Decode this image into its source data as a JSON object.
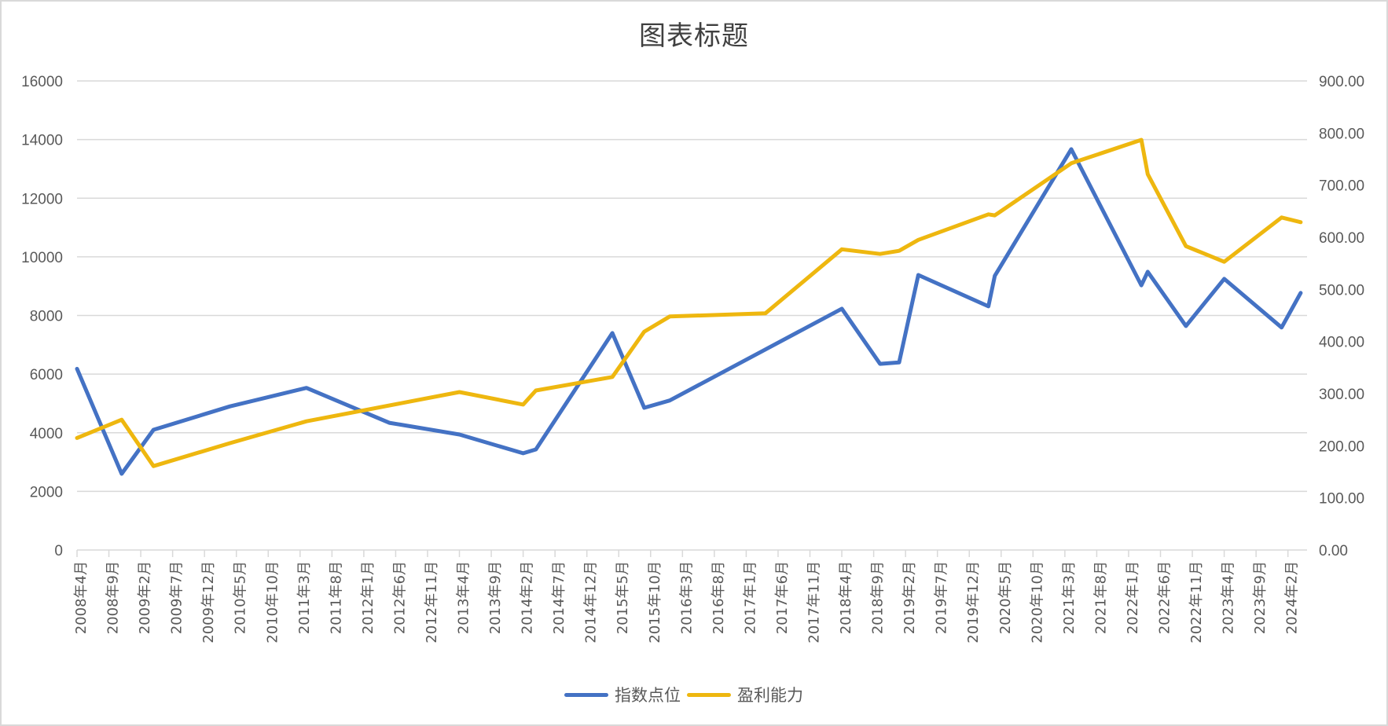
{
  "chart_data": {
    "type": "line",
    "title": "图表标题",
    "xlabel": "",
    "ylabel": "",
    "y2label": "",
    "grid": true,
    "legend_position": "bottom",
    "x_axis": {
      "start": "2008年4月",
      "tick_interval_months": 5,
      "tick_labels": [
        "2008年4月",
        "2008年9月",
        "2009年2月",
        "2009年7月",
        "2009年12月",
        "2010年5月",
        "2010年10月",
        "2011年3月",
        "2011年8月",
        "2012年1月",
        "2012年6月",
        "2012年11月",
        "2013年4月",
        "2013年9月",
        "2014年2月",
        "2014年7月",
        "2014年12月",
        "2015年5月",
        "2015年10月",
        "2016年3月",
        "2016年8月",
        "2017年1月",
        "2017年6月",
        "2017年11月",
        "2018年4月",
        "2018年9月",
        "2019年2月",
        "2019年7月",
        "2019年12月",
        "2020年5月",
        "2020年10月",
        "2021年3月",
        "2021年8月",
        "2022年1月",
        "2022年6月",
        "2022年11月",
        "2023年4月",
        "2023年9月",
        "2024年2月"
      ],
      "range_months": [
        0,
        193
      ]
    },
    "y_left": {
      "min": 0,
      "max": 16000,
      "step": 2000,
      "tick_labels": [
        "0",
        "2000",
        "4000",
        "6000",
        "8000",
        "10000",
        "12000",
        "14000",
        "16000"
      ]
    },
    "y_right": {
      "min": 0,
      "max": 900,
      "step": 100,
      "tick_labels": [
        "0.00",
        "100.00",
        "200.00",
        "300.00",
        "400.00",
        "500.00",
        "600.00",
        "700.00",
        "800.00",
        "900.00"
      ]
    },
    "series": [
      {
        "name": "指数点位",
        "axis": "left",
        "color": "#4472C4",
        "x_months": [
          0,
          7,
          12,
          24,
          36,
          49,
          60,
          70,
          72,
          84,
          89,
          93,
          108,
          120,
          126,
          129,
          132,
          143,
          144,
          156,
          167,
          168,
          174,
          180,
          189,
          192
        ],
        "x_dates": [
          "2008-04",
          "2008-11",
          "2009-04",
          "2010-04",
          "2011-04",
          "2012-05",
          "2013-04",
          "2014-02",
          "2014-04",
          "2015-04",
          "2015-09",
          "2016-01",
          "2017-04",
          "2018-04",
          "2018-10",
          "2019-01",
          "2019-04",
          "2020-03",
          "2020-04",
          "2021-04",
          "2022-03",
          "2022-04",
          "2022-10",
          "2023-04",
          "2024-01",
          "2024-04"
        ],
        "values": [
          6180,
          2600,
          4100,
          4900,
          5530,
          4340,
          3940,
          3300,
          3430,
          7400,
          4850,
          5100,
          6840,
          8230,
          6350,
          6400,
          9380,
          8310,
          9350,
          13670,
          9030,
          9490,
          7640,
          9250,
          7590,
          8770
        ]
      },
      {
        "name": "盈利能力",
        "axis": "right",
        "color": "#EEB70F",
        "x_months": [
          0,
          7,
          12,
          24,
          36,
          60,
          70,
          72,
          84,
          89,
          93,
          108,
          120,
          126,
          129,
          132,
          143,
          144,
          156,
          167,
          168,
          174,
          180,
          189,
          192
        ],
        "x_dates": [
          "2008-04",
          "2008-11",
          "2009-04",
          "2010-04",
          "2011-04",
          "2013-04",
          "2014-02",
          "2014-04",
          "2015-04",
          "2015-09",
          "2016-01",
          "2017-04",
          "2018-04",
          "2018-10",
          "2019-01",
          "2019-04",
          "2020-03",
          "2020-04",
          "2021-04",
          "2022-03",
          "2022-04",
          "2022-10",
          "2023-04",
          "2024-01",
          "2024-04"
        ],
        "values": [
          215,
          250,
          161,
          205,
          247,
          303,
          279,
          306,
          332,
          419,
          448,
          454,
          577,
          568,
          574,
          595,
          644,
          642,
          742,
          787,
          721,
          583,
          553,
          638,
          629
        ]
      }
    ]
  },
  "legend": {
    "items": [
      {
        "label": "指数点位",
        "color": "#4472C4"
      },
      {
        "label": "盈利能力",
        "color": "#EEB70F"
      }
    ]
  }
}
